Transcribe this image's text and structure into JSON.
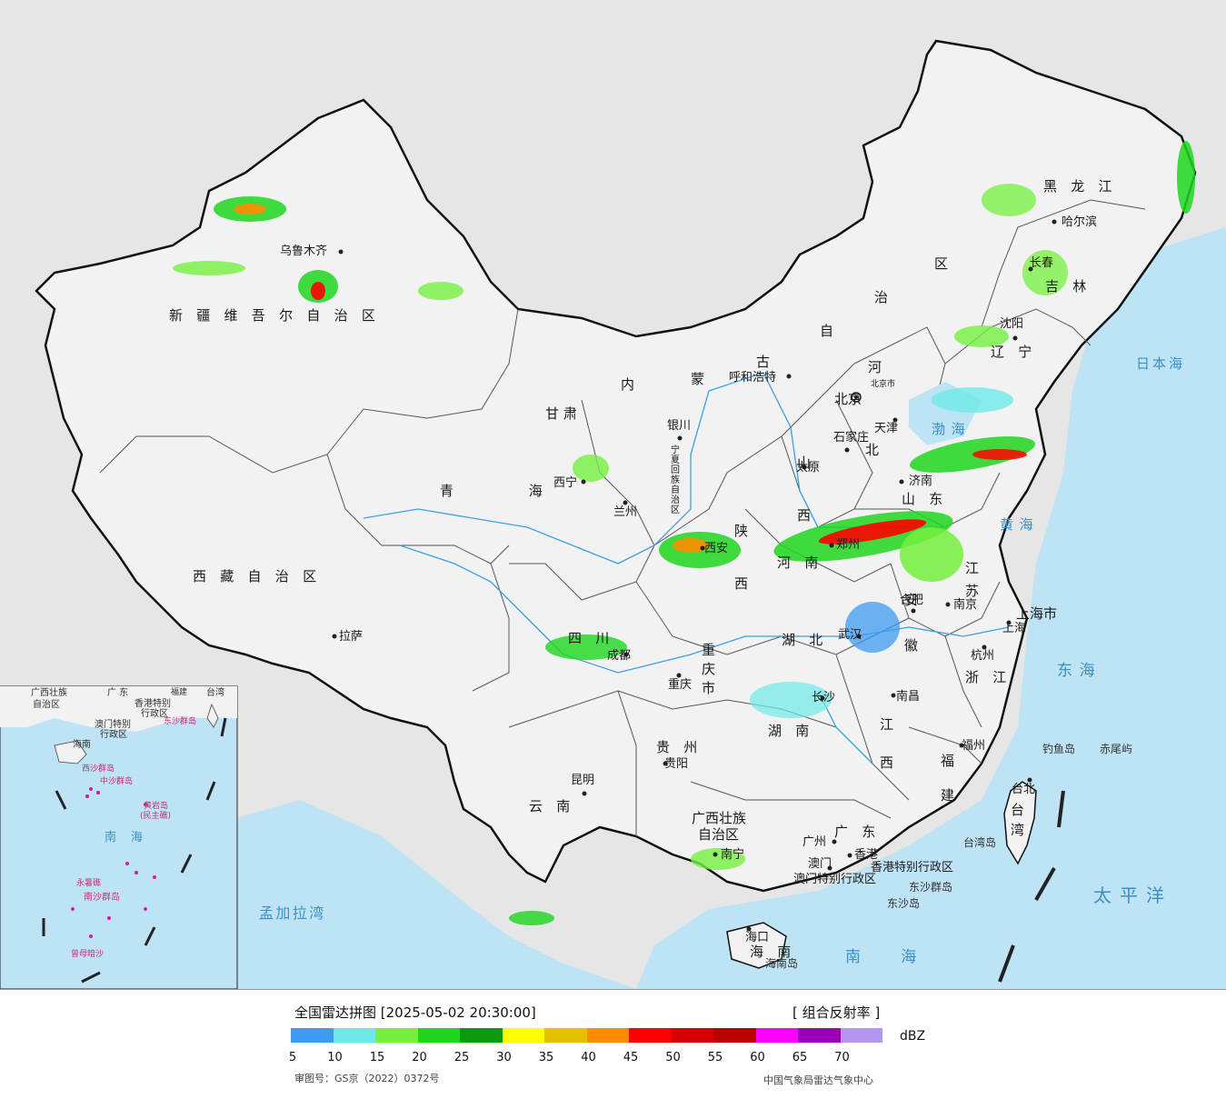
{
  "legend": {
    "title": "全国雷达拼图 [2025-05-02 20:30:00]",
    "product": "[ 组合反射率 ]",
    "unit": "dBZ",
    "colors": [
      "#3d9bf2",
      "#6fe8e8",
      "#74f03e",
      "#1ed61e",
      "#0a9a0a",
      "#ffff00",
      "#e6bf00",
      "#ff8c00",
      "#ff0000",
      "#d60000",
      "#b80000",
      "#ff00ff",
      "#9a00b4",
      "#b296f0"
    ],
    "ticks": [
      "5",
      "10",
      "15",
      "20",
      "25",
      "30",
      "35",
      "40",
      "45",
      "50",
      "55",
      "60",
      "65",
      "70"
    ],
    "approval": "审图号：GS京（2022）0372号",
    "credit": "中国气象局雷达气象中心"
  },
  "provinces": {
    "heilongjiang": "黑 龙 江",
    "jilin": "吉 林",
    "liaoning": "辽 宁",
    "neimenggu_1": "区",
    "neimenggu_2": "治",
    "neimenggu_3": "自",
    "neimenggu_4": "古",
    "neimenggu_5": "蒙",
    "neimenggu_6": "内",
    "hebei_1": "河",
    "hebei_2": "北",
    "shanxi": "山 西",
    "shandong": "山 东",
    "henan": "河 南",
    "jiangsu": "江 苏",
    "anhui": "安 徽",
    "hubei": "湖 北",
    "hunan": "湖 南",
    "jiangxi": "江 西",
    "zhejiang": "浙 江",
    "fujian": "福 建",
    "guangdong": "广 东",
    "guangxi_1": "广西壮族",
    "guangxi_2": "自治区",
    "hainan": "海 南",
    "guizhou": "贵 州",
    "yunnan": "云 南",
    "sichuan": "四 川",
    "chongqing": "重 庆 市",
    "shaanxi": "陕 西",
    "gansu": "甘 肃",
    "ningxia": "宁夏回族自治区",
    "qinghai": "青 海",
    "xizang": "西 藏 自 治 区",
    "xinjiang": "新 疆 维 吾 尔 自 治 区",
    "shanghai": "上海市",
    "taiwan": "台 湾",
    "xianggang": "香港特别行政区",
    "aomen": "澳门特别行政区"
  },
  "cities": {
    "wulumuqi": "乌鲁木齐",
    "lasa": "拉萨",
    "xining": "西宁",
    "lanzhou": "兰州",
    "yinchuan": "银川",
    "huhehaote": "呼和浩特",
    "beijing": "北京",
    "beijingshi": "北京市",
    "tianjin": "天津",
    "shijiazhuang": "石家庄",
    "taiyuan": "太原",
    "jinan": "济南",
    "zhengzhou": "郑州",
    "xian": "西安",
    "chengdu": "成都",
    "chongqing": "重庆",
    "wuhan": "武汉",
    "hefei": "合肥",
    "nanjing": "南京",
    "shanghai": "上海",
    "hangzhou": "杭州",
    "nanchang": "南昌",
    "changsha": "长沙",
    "fuzhou": "福州",
    "taibei": "台北",
    "guiyang": "贵阳",
    "kunming": "昆明",
    "nanning": "南宁",
    "guangzhou": "广州",
    "xianggang": "香港",
    "aomen": "澳门",
    "haikou": "海口",
    "haerbin": "哈尔滨",
    "changchun": "长春",
    "shenyang": "沈阳"
  },
  "seas": {
    "riben": "日本海",
    "bohai": "渤海",
    "huanghai": "黄海",
    "donghai": "东海",
    "taipingyang": "太平洋",
    "nanhai": "南海",
    "mengjiala": "孟加拉湾",
    "inset_nanhai": "南 海"
  },
  "islands": {
    "diaoyu": "钓鱼岛",
    "chiwei": "赤尾屿",
    "taiwandao": "台湾岛",
    "dongsha_qundao": "东沙群岛",
    "dongsha_dao": "东沙岛",
    "hainandao": "海南岛"
  },
  "inset": {
    "guangxi": "广西壮族",
    "zizhiqu": "自治区",
    "guangdong": "广 东",
    "fujian": "福建",
    "taiwan": "台湾",
    "hk": "香港特别",
    "hk2": "行政区",
    "macau": "澳门特别",
    "macau2": "行政区",
    "dongsha": "东沙群岛",
    "hainan": "海南",
    "xisha": "西沙群岛",
    "zhongsha": "中沙群岛",
    "huangyan": "黄岩岛",
    "huangyan2": "(民主礁)",
    "yongshu": "永暑礁",
    "nansha": "南沙群岛",
    "zengmu": "曾母暗沙"
  },
  "echo_levels": {
    "light": "#6fe8e8",
    "moderate": "#1ed61e",
    "heavy": "#ffff00",
    "intense": "#ff0000"
  }
}
